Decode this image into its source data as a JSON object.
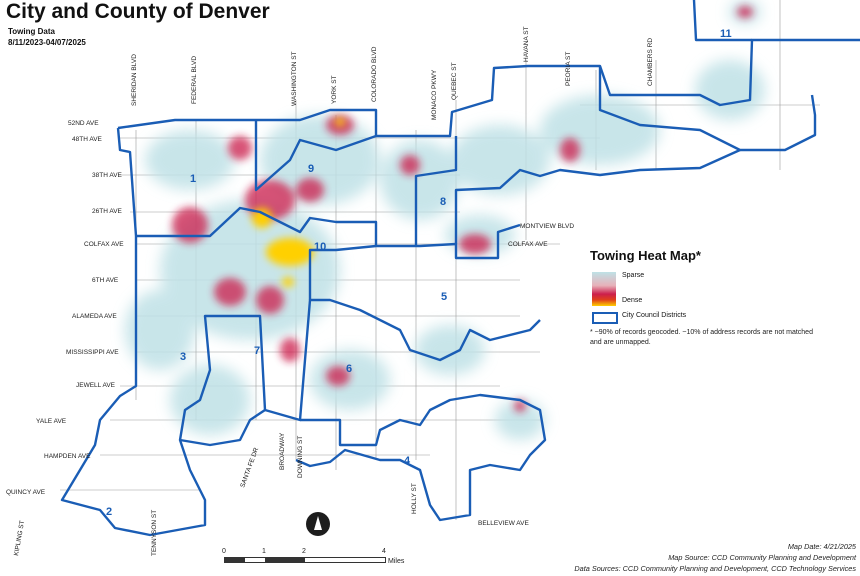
{
  "header": {
    "title": "City and County of Denver",
    "subtitle": "Towing Data",
    "date_range": "8/11/2023-04/07/2025"
  },
  "streets": {
    "horizontal": [
      "52ND AVE",
      "48TH AVE",
      "38TH AVE",
      "26TH AVE",
      "COLFAX AVE",
      "6TH AVE",
      "ALAMEDA AVE",
      "MISSISSIPPI AVE",
      "JEWELL AVE",
      "YALE AVE",
      "HAMPDEN AVE",
      "QUINCY AVE"
    ],
    "vertical": [
      "SHERIDAN BLVD",
      "FEDERAL BLVD",
      "WASHINGTON ST",
      "YORK ST",
      "COLORADO BLVD",
      "MONACO PKWY",
      "QUEBEC ST",
      "HAVANA ST",
      "PEORIA ST",
      "CHAMBERS RD"
    ],
    "other": [
      "MONTVIEW BLVD",
      "COLFAX AVE",
      "SANTA FE DR",
      "BROADWAY",
      "DOWNING ST",
      "HOLLY ST",
      "BELLEVIEW AVE",
      "KIPLING ST",
      "TENNYSON ST"
    ]
  },
  "districts": [
    "1",
    "2",
    "3",
    "4",
    "5",
    "6",
    "7",
    "8",
    "9",
    "10",
    "11"
  ],
  "legend": {
    "title": "Towing Heat Map*",
    "sparse": "Sparse",
    "dense": "Dense",
    "council": "City Council Districts",
    "note": "* ~90% of records geocoded. ~10% of address records are not matched and are unmapped."
  },
  "scale": {
    "ticks": [
      "0",
      "1",
      "2",
      "4"
    ],
    "unit": "Miles"
  },
  "footer": {
    "map_date": "Map Date: 4/21/2025",
    "map_source": "Map Source: CCD Community Planning and Development",
    "data_sources": "Data Sources: CCD Community Planning and Development, CCD Technology Services"
  },
  "colors": {
    "district_boundary": "#1a5db5",
    "sparse": "#bfe1e6",
    "mid": "#cc1f4c",
    "dense": "#ffd000"
  }
}
